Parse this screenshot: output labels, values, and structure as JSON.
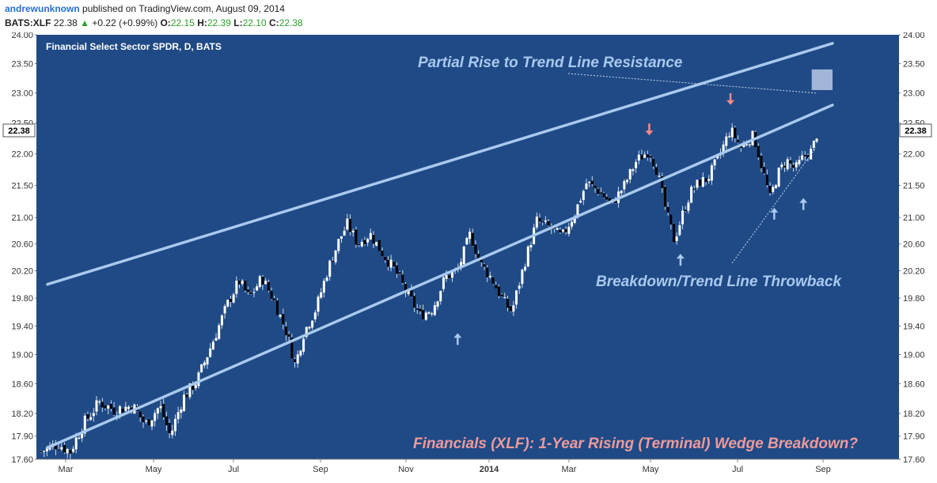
{
  "header": {
    "author": "andrewunknown",
    "published": "published on TradingView.com, August 09, 2014",
    "symbol": "BATS:XLF",
    "last": "22.38",
    "change_arrow": "▲",
    "change": "+0.22 (+0.99%)",
    "o_label": "O:",
    "o": "22.15",
    "h_label": "H:",
    "h": "22.39",
    "l_label": "L:",
    "l": "22.10",
    "c_label": "C:",
    "c": "22.38"
  },
  "colors": {
    "background": "#1f4a86",
    "channel": "#a9c9ee",
    "up_candle": "#ffffff",
    "down_candle": "#000000",
    "annotation_blue": "#a9c9ee",
    "annotation_pink": "#ee9a9a",
    "arrow_up": "#a9c9ee",
    "arrow_down": "#f08a8a",
    "price_tag_bg": "#ffffff"
  },
  "chart_data": {
    "type": "candlestick",
    "title": "Financial Select Sector SPDR, D, BATS",
    "x_tick_labels": [
      "Mar",
      "May",
      "Jul",
      "Sep",
      "Nov",
      "2014",
      "Mar",
      "May",
      "Jul",
      "Sep"
    ],
    "y_ticks": [
      "17.60",
      "17.90",
      "18.20",
      "18.60",
      "19.00",
      "19.40",
      "19.80",
      "20.20",
      "20.60",
      "21.00",
      "21.50",
      "22.00",
      "22.50",
      "23.00",
      "23.50",
      "24.00"
    ],
    "y_range": [
      17.6,
      24.0
    ],
    "y_scale": "log",
    "x_range_days": [
      0,
      380
    ],
    "last_price": "22.38",
    "close_path": [
      {
        "d": 0,
        "c": 17.7
      },
      {
        "d": 8,
        "c": 17.8
      },
      {
        "d": 14,
        "c": 17.7
      },
      {
        "d": 20,
        "c": 18.05
      },
      {
        "d": 28,
        "c": 18.35
      },
      {
        "d": 35,
        "c": 18.25
      },
      {
        "d": 44,
        "c": 18.3
      },
      {
        "d": 50,
        "c": 18.05
      },
      {
        "d": 57,
        "c": 18.3
      },
      {
        "d": 62,
        "c": 17.9
      },
      {
        "d": 68,
        "c": 18.4
      },
      {
        "d": 75,
        "c": 18.65
      },
      {
        "d": 82,
        "c": 19.15
      },
      {
        "d": 90,
        "c": 19.75
      },
      {
        "d": 95,
        "c": 20.05
      },
      {
        "d": 100,
        "c": 19.8
      },
      {
        "d": 106,
        "c": 20.1
      },
      {
        "d": 112,
        "c": 19.75
      },
      {
        "d": 118,
        "c": 19.3
      },
      {
        "d": 122,
        "c": 18.85
      },
      {
        "d": 126,
        "c": 19.3
      },
      {
        "d": 132,
        "c": 19.65
      },
      {
        "d": 138,
        "c": 20.25
      },
      {
        "d": 143,
        "c": 20.65
      },
      {
        "d": 147,
        "c": 20.9
      },
      {
        "d": 152,
        "c": 20.6
      },
      {
        "d": 158,
        "c": 20.75
      },
      {
        "d": 164,
        "c": 20.45
      },
      {
        "d": 170,
        "c": 20.2
      },
      {
        "d": 176,
        "c": 19.85
      },
      {
        "d": 182,
        "c": 19.55
      },
      {
        "d": 188,
        "c": 19.65
      },
      {
        "d": 194,
        "c": 20.1
      },
      {
        "d": 200,
        "c": 20.2
      },
      {
        "d": 206,
        "c": 20.75
      },
      {
        "d": 211,
        "c": 20.3
      },
      {
        "d": 216,
        "c": 20.1
      },
      {
        "d": 222,
        "c": 19.75
      },
      {
        "d": 226,
        "c": 19.6
      },
      {
        "d": 232,
        "c": 20.3
      },
      {
        "d": 238,
        "c": 20.95
      },
      {
        "d": 244,
        "c": 20.85
      },
      {
        "d": 250,
        "c": 20.7
      },
      {
        "d": 256,
        "c": 21.05
      },
      {
        "d": 262,
        "c": 21.55
      },
      {
        "d": 268,
        "c": 21.4
      },
      {
        "d": 274,
        "c": 21.2
      },
      {
        "d": 280,
        "c": 21.5
      },
      {
        "d": 286,
        "c": 21.9
      },
      {
        "d": 292,
        "c": 22.05
      },
      {
        "d": 296,
        "c": 21.7
      },
      {
        "d": 300,
        "c": 21.1
      },
      {
        "d": 304,
        "c": 20.65
      },
      {
        "d": 308,
        "c": 21.05
      },
      {
        "d": 312,
        "c": 21.4
      },
      {
        "d": 316,
        "c": 21.55
      },
      {
        "d": 320,
        "c": 21.6
      },
      {
        "d": 326,
        "c": 22.0
      },
      {
        "d": 331,
        "c": 22.4
      },
      {
        "d": 336,
        "c": 22.1
      },
      {
        "d": 342,
        "c": 22.3
      },
      {
        "d": 346,
        "c": 21.8
      },
      {
        "d": 350,
        "c": 21.3
      },
      {
        "d": 354,
        "c": 21.7
      },
      {
        "d": 358,
        "c": 21.9
      },
      {
        "d": 362,
        "c": 21.75
      },
      {
        "d": 366,
        "c": 21.95
      },
      {
        "d": 370,
        "c": 22.05
      },
      {
        "d": 373,
        "c": 22.38
      }
    ],
    "channel": {
      "upper": [
        {
          "d": 3,
          "c": 20.0
        },
        {
          "d": 380,
          "c": 23.85
        }
      ],
      "lower": [
        {
          "d": 3,
          "c": 17.75
        },
        {
          "d": 380,
          "c": 22.8
        }
      ]
    },
    "arrows": [
      {
        "dir": "up",
        "d": 200,
        "c": 19.3
      },
      {
        "dir": "up",
        "d": 307,
        "c": 20.45
      },
      {
        "dir": "up",
        "d": 352,
        "c": 21.15
      },
      {
        "dir": "up",
        "d": 366,
        "c": 21.3
      },
      {
        "dir": "down",
        "d": 292,
        "c": 22.3
      },
      {
        "dir": "down",
        "d": 331,
        "c": 22.8
      }
    ],
    "resistance_box": {
      "d1": 370,
      "d2": 380,
      "c1": 23.05,
      "c2": 23.4
    },
    "annotations": {
      "partial_rise": "Partial Rise to Trend Line Resistance",
      "breakdown": "Breakdown/Trend Line Throwback",
      "headline": "Financials (XLF): 1-Year Rising (Terminal) Wedge Breakdown?"
    }
  }
}
